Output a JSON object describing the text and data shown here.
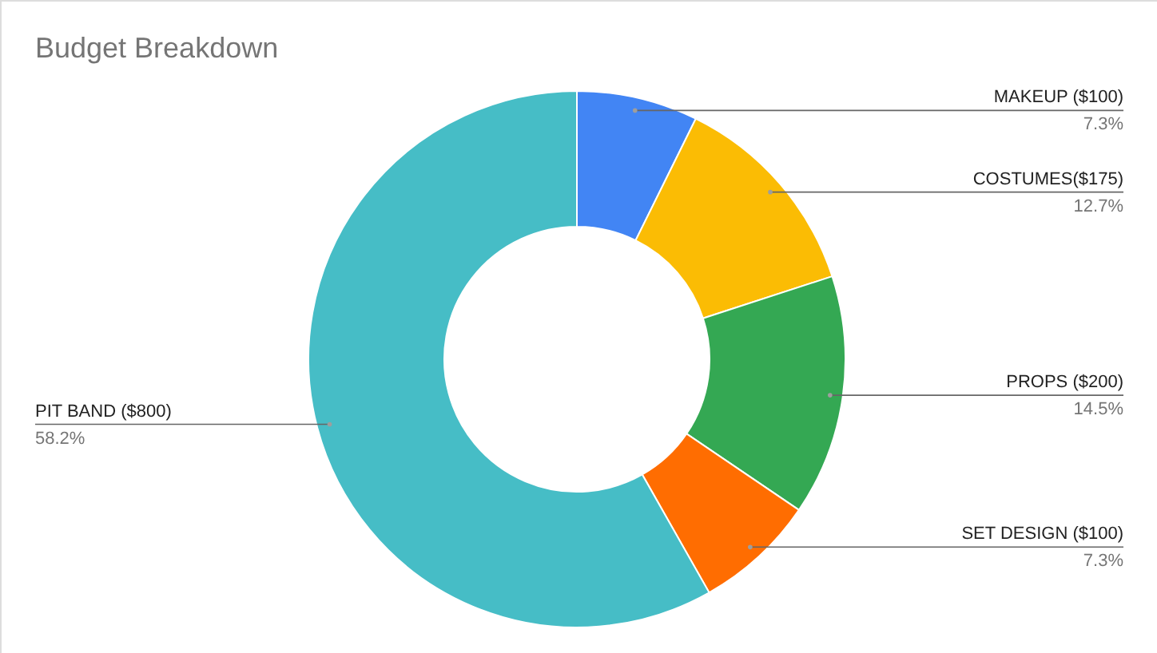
{
  "chart_data": {
    "type": "donut",
    "title": "Budget Breakdown",
    "categories": [
      "MAKEUP ($100)",
      "COSTUMES($175)",
      "PROPS ($200)",
      "SET DESIGN ($100)",
      "PIT BAND ($800)"
    ],
    "values": [
      7.3,
      12.7,
      14.5,
      7.3,
      58.2
    ],
    "colors": [
      "#4285f4",
      "#fbbc04",
      "#34a853",
      "#ff6d01",
      "#46bdc6"
    ],
    "value_labels": [
      "7.3%",
      "12.7%",
      "14.5%",
      "7.3%",
      "58.2%"
    ]
  }
}
